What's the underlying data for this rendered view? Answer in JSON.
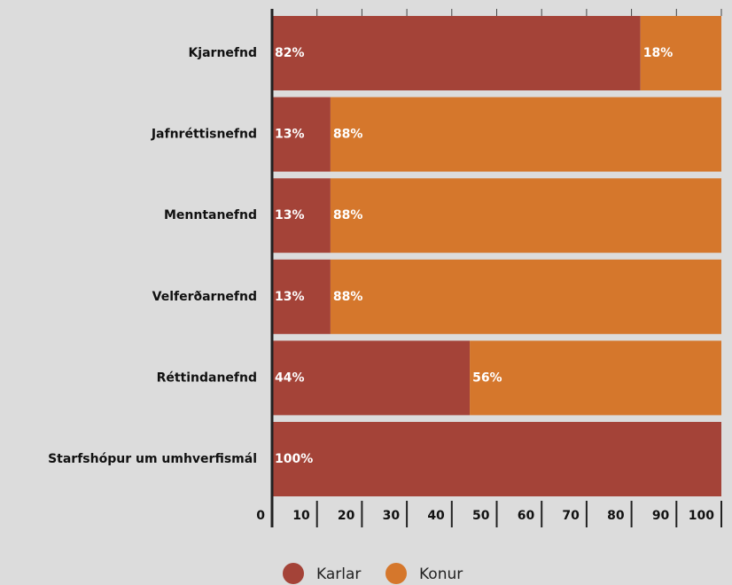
{
  "chart_data": {
    "type": "stacked-bar-horizontal",
    "categories": [
      "Kjarnefnd",
      "Jafnréttisnefnd",
      "Menntanefnd",
      "Velferðarnefnd",
      "Réttindanefnd",
      "Starfshópur um umhverfismál"
    ],
    "series": [
      {
        "name": "Karlar",
        "color": "#a44338",
        "values": [
          82,
          13,
          13,
          13,
          44,
          100
        ],
        "value_labels": [
          "82%",
          "13%",
          "13%",
          "13%",
          "44%",
          "100%"
        ]
      },
      {
        "name": "Konur",
        "color": "#d5772c",
        "values": [
          18,
          88,
          88,
          88,
          56,
          null
        ],
        "value_labels": [
          "18%",
          "88%",
          "88%",
          "88%",
          "56%",
          null
        ]
      }
    ],
    "xlim": [
      0,
      100
    ],
    "xticks": [
      0,
      10,
      20,
      30,
      40,
      50,
      60,
      70,
      80,
      90,
      100
    ]
  }
}
